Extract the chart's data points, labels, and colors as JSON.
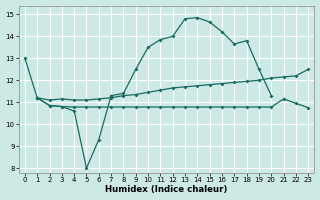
{
  "xlabel": "Humidex (Indice chaleur)",
  "bg_color": "#cce9e5",
  "grid_color": "#ffffff",
  "line_color": "#1a6b60",
  "xlim": [
    -0.5,
    23.5
  ],
  "ylim": [
    7.8,
    15.4
  ],
  "yticks": [
    8,
    9,
    10,
    11,
    12,
    13,
    14,
    15
  ],
  "xticks": [
    0,
    1,
    2,
    3,
    4,
    5,
    6,
    7,
    8,
    9,
    10,
    11,
    12,
    13,
    14,
    15,
    16,
    17,
    18,
    19,
    20,
    21,
    22,
    23
  ],
  "lines": [
    {
      "x": [
        0,
        1,
        2,
        3,
        4,
        5,
        6,
        7
      ],
      "y": [
        13.0,
        11.2,
        10.85,
        10.8,
        10.6,
        8.0,
        9.3,
        11.3
      ]
    },
    {
      "x": [
        7,
        8,
        9,
        10,
        11,
        12,
        13,
        14,
        15,
        16,
        17,
        18,
        19,
        20
      ],
      "y": [
        11.3,
        11.4,
        12.5,
        13.5,
        13.85,
        14.0,
        14.8,
        14.85,
        14.65,
        14.2,
        13.65,
        13.8,
        12.5,
        11.3
      ]
    },
    {
      "x": [
        1,
        2,
        3,
        4,
        5,
        6,
        7,
        8,
        9,
        10,
        11,
        12,
        13,
        14,
        15,
        16,
        17,
        18,
        19,
        20,
        21,
        22,
        23
      ],
      "y": [
        11.2,
        11.1,
        11.15,
        11.1,
        11.1,
        11.15,
        11.2,
        11.3,
        11.35,
        11.45,
        11.55,
        11.65,
        11.7,
        11.75,
        11.8,
        11.85,
        11.9,
        11.95,
        12.0,
        12.1,
        12.15,
        12.2,
        12.5
      ]
    },
    {
      "x": [
        1,
        2,
        3,
        4,
        5,
        6,
        7,
        8,
        9,
        10,
        11,
        12,
        13,
        14,
        15,
        16,
        17,
        18,
        19,
        20,
        21,
        22,
        23
      ],
      "y": [
        11.2,
        10.85,
        10.8,
        10.78,
        10.78,
        10.78,
        10.78,
        10.78,
        10.78,
        10.78,
        10.78,
        10.78,
        10.78,
        10.78,
        10.78,
        10.78,
        10.78,
        10.78,
        10.78,
        10.78,
        11.15,
        10.95,
        10.75
      ]
    }
  ]
}
